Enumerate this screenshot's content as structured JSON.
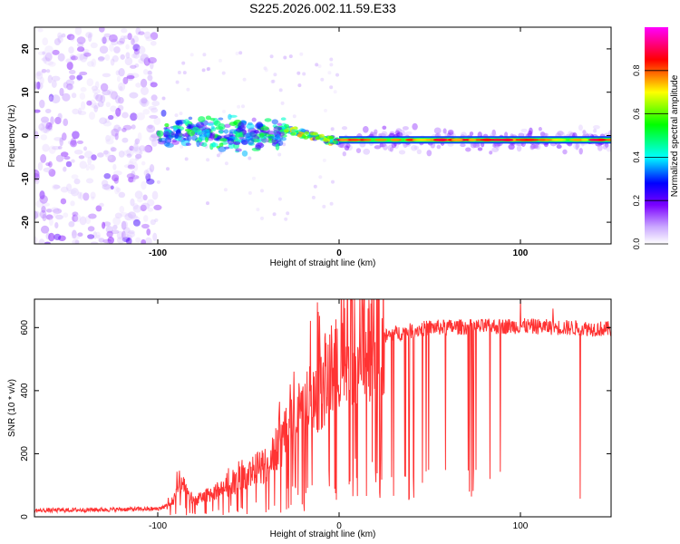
{
  "title": "S225.2026.002.11.59.E33",
  "chart_data": [
    {
      "type": "heatmap",
      "name": "spectrogram",
      "xlabel": "Height of straight line (km)",
      "ylabel": "Frequency (Hz)",
      "xlim": [
        -168,
        150
      ],
      "ylim": [
        -25,
        25
      ],
      "xticks": [
        -100,
        0,
        100
      ],
      "yticks": [
        -20,
        -10,
        0,
        10,
        20
      ],
      "colorbar": {
        "label": "Normalized spectral amplitude",
        "range": [
          0,
          1
        ],
        "ticks": [
          "0.0",
          "0.2",
          "0.4",
          "0.6",
          "0.8"
        ],
        "colors": [
          "#ffffff",
          "#7b00ff",
          "#0000ff",
          "#00ffff",
          "#00ff00",
          "#ffff00",
          "#ff0000",
          "#ff00ff"
        ]
      },
      "features": [
        {
          "region": "noise",
          "x_range": [
            -168,
            -100
          ],
          "freq_range": [
            -25,
            25
          ],
          "amplitude": 0.12
        },
        {
          "region": "turbulent_signal",
          "x_range": [
            -100,
            -30
          ],
          "freq_center": 0.5,
          "freq_spread": 5,
          "amplitude": 0.35
        },
        {
          "region": "drift_signal",
          "x_range": [
            -30,
            0
          ],
          "freq_start": 1.5,
          "freq_end": -1.5,
          "amplitude": 0.7
        },
        {
          "region": "stable_tone",
          "x_range": [
            0,
            150
          ],
          "freq_center": -1,
          "amplitude": 0.9
        }
      ]
    },
    {
      "type": "line",
      "name": "snr",
      "xlabel": "Height of straight line (km)",
      "ylabel": "SNR (10 * v/v)",
      "xlim": [
        -168,
        150
      ],
      "ylim": [
        0,
        690
      ],
      "xticks": [
        -100,
        0,
        100
      ],
      "yticks": [
        0,
        200,
        400,
        600
      ],
      "color": "#ff3333",
      "envelope": {
        "x": [
          -168,
          -100,
          -92,
          -88,
          -80,
          -60,
          -40,
          -30,
          -20,
          -10,
          0,
          10,
          20,
          30,
          50,
          100,
          150
        ],
        "y": [
          20,
          25,
          40,
          110,
          50,
          100,
          170,
          250,
          330,
          420,
          480,
          540,
          560,
          580,
          600,
          605,
          595
        ]
      },
      "spikes": [
        {
          "x": -12,
          "y": 680
        },
        {
          "x": -4,
          "y": 555
        },
        {
          "x": 100,
          "y": 690
        },
        {
          "x": 118,
          "y": 660
        }
      ]
    }
  ]
}
